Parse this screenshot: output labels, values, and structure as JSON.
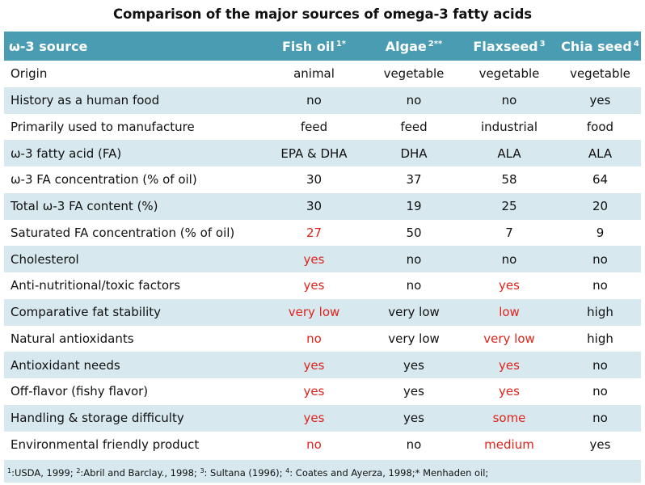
{
  "title": "Comparison of the major sources of omega-3 fatty acids",
  "colors": {
    "header_bg": "#4a9cb2",
    "stripe_bg": "#d7e8ee",
    "highlight_text": "#e0231b"
  },
  "header": {
    "label": "ω-3 source",
    "columns": [
      {
        "name": "Fish oil",
        "sup": "1*"
      },
      {
        "name": "Algae",
        "sup": "2**"
      },
      {
        "name": "Flaxseed",
        "sup": "3"
      },
      {
        "name": "Chia seed",
        "sup": "4"
      }
    ]
  },
  "rows": [
    {
      "label": "Origin",
      "cells": [
        {
          "v": "animal",
          "red": false
        },
        {
          "v": "vegetable",
          "red": false
        },
        {
          "v": "vegetable",
          "red": false
        },
        {
          "v": "vegetable",
          "red": false
        }
      ]
    },
    {
      "label": "History as a human food",
      "cells": [
        {
          "v": "no",
          "red": false
        },
        {
          "v": "no",
          "red": false
        },
        {
          "v": "no",
          "red": false
        },
        {
          "v": "yes",
          "red": false
        }
      ]
    },
    {
      "label": "Primarily used to manufacture",
      "cells": [
        {
          "v": "feed",
          "red": false
        },
        {
          "v": "feed",
          "red": false
        },
        {
          "v": "industrial",
          "red": false
        },
        {
          "v": "food",
          "red": false
        }
      ]
    },
    {
      "label": "ω-3 fatty acid (FA)",
      "cells": [
        {
          "v": "EPA & DHA",
          "red": false
        },
        {
          "v": "DHA",
          "red": false
        },
        {
          "v": "ALA",
          "red": false
        },
        {
          "v": "ALA",
          "red": false
        }
      ]
    },
    {
      "label": "ω-3 FA concentration (% of oil)",
      "cells": [
        {
          "v": "30",
          "red": false
        },
        {
          "v": "37",
          "red": false
        },
        {
          "v": "58",
          "red": false
        },
        {
          "v": "64",
          "red": false
        }
      ]
    },
    {
      "label": "Total ω-3 FA content (%)",
      "cells": [
        {
          "v": "30",
          "red": false
        },
        {
          "v": "19",
          "red": false
        },
        {
          "v": "25",
          "red": false
        },
        {
          "v": "20",
          "red": false
        }
      ]
    },
    {
      "label": "Saturated FA concentration (% of oil)",
      "cells": [
        {
          "v": "27",
          "red": true
        },
        {
          "v": "50",
          "red": false
        },
        {
          "v": "7",
          "red": false
        },
        {
          "v": "9",
          "red": false
        }
      ]
    },
    {
      "label": "Cholesterol",
      "cells": [
        {
          "v": "yes",
          "red": true
        },
        {
          "v": "no",
          "red": false
        },
        {
          "v": "no",
          "red": false
        },
        {
          "v": "no",
          "red": false
        }
      ]
    },
    {
      "label": "Anti-nutritional/toxic factors",
      "cells": [
        {
          "v": "yes",
          "red": true
        },
        {
          "v": "no",
          "red": false
        },
        {
          "v": "yes",
          "red": true
        },
        {
          "v": "no",
          "red": false
        }
      ]
    },
    {
      "label": "Comparative fat stability",
      "cells": [
        {
          "v": "very low",
          "red": true
        },
        {
          "v": "very low",
          "red": false
        },
        {
          "v": "low",
          "red": true
        },
        {
          "v": "high",
          "red": false
        }
      ]
    },
    {
      "label": "Natural antioxidants",
      "cells": [
        {
          "v": "no",
          "red": true
        },
        {
          "v": "very low",
          "red": false
        },
        {
          "v": "very low",
          "red": true
        },
        {
          "v": "high",
          "red": false
        }
      ]
    },
    {
      "label": "Antioxidant needs",
      "cells": [
        {
          "v": "yes",
          "red": true
        },
        {
          "v": "yes",
          "red": false
        },
        {
          "v": "yes",
          "red": true
        },
        {
          "v": "no",
          "red": false
        }
      ]
    },
    {
      "label": "Off-flavor (fishy flavor)",
      "cells": [
        {
          "v": "yes",
          "red": true
        },
        {
          "v": "yes",
          "red": false
        },
        {
          "v": "yes",
          "red": true
        },
        {
          "v": "no",
          "red": false
        }
      ]
    },
    {
      "label": "Handling & storage difficulty",
      "cells": [
        {
          "v": "yes",
          "red": true
        },
        {
          "v": "yes",
          "red": false
        },
        {
          "v": "some",
          "red": true
        },
        {
          "v": "no",
          "red": false
        }
      ]
    },
    {
      "label": "Environmental friendly product",
      "cells": [
        {
          "v": "no",
          "red": true
        },
        {
          "v": "no",
          "red": false
        },
        {
          "v": "medium",
          "red": true
        },
        {
          "v": "yes",
          "red": false
        }
      ]
    }
  ],
  "footnote": [
    {
      "sup": "1",
      "text": ":USDA, 1999; "
    },
    {
      "sup": "2",
      "text": ":Abril and Barclay., 1998; "
    },
    {
      "sup": "3",
      "text": ": Sultana (1996); "
    },
    {
      "sup": "4",
      "text": ": Coates and Ayerza, 1998;* Menhaden oil;"
    }
  ]
}
